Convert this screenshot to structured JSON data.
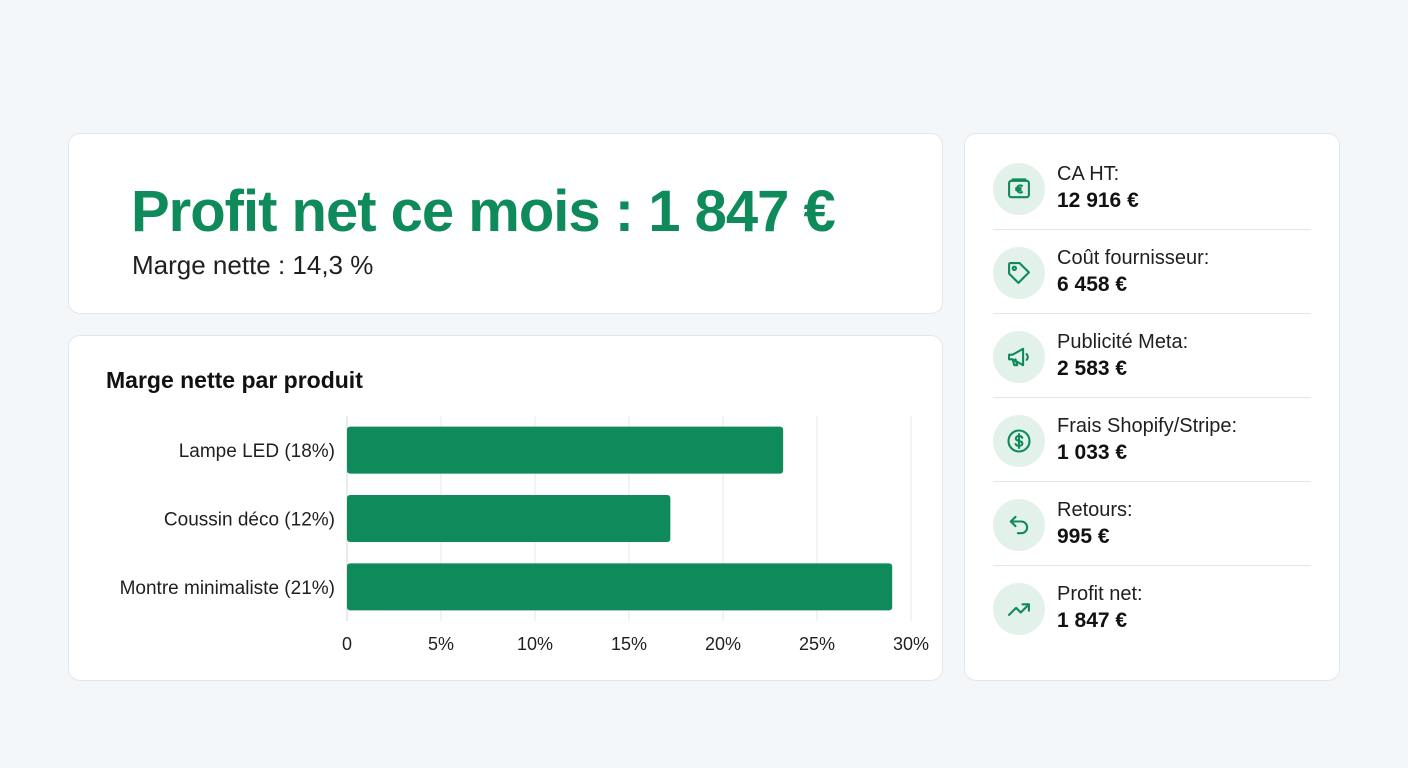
{
  "hero": {
    "title": "Profit net ce mois : 1 847 €",
    "subtitle": "Marge nette : 14,3 %"
  },
  "chart_data": {
    "type": "bar",
    "orientation": "horizontal",
    "title": "Marge nette par produit",
    "categories": [
      "Lampe LED (18%)",
      "Coussin déco (12%)",
      "Montre minimaliste (21%)"
    ],
    "values": [
      23.2,
      17.2,
      29.0
    ],
    "xlim": [
      0,
      30
    ],
    "xticks": [
      "0",
      "5%",
      "10%",
      "15%",
      "20%",
      "25%",
      "30%"
    ],
    "grid": true,
    "bar_color": "#0f8a5a"
  },
  "breakdown": {
    "items": [
      {
        "label": "CA HT:",
        "value": "12 916 €",
        "icon": "euro-wallet-icon"
      },
      {
        "label": "Coût fournisseur:",
        "value": "6 458 €",
        "icon": "price-tag-icon"
      },
      {
        "label": "Publicité Meta:",
        "value": "2 583 €",
        "icon": "megaphone-icon"
      },
      {
        "label": "Frais Shopify/Stripe:",
        "value": "1 033 €",
        "icon": "dollar-coin-icon"
      },
      {
        "label": "Retours:",
        "value": "995 €",
        "icon": "return-arrow-icon"
      },
      {
        "label": "Profit net:",
        "value": "1 847 €",
        "icon": "trend-up-icon"
      }
    ]
  },
  "colors": {
    "accent": "#0f8a5a",
    "icon_bg": "#e2f2ea"
  }
}
